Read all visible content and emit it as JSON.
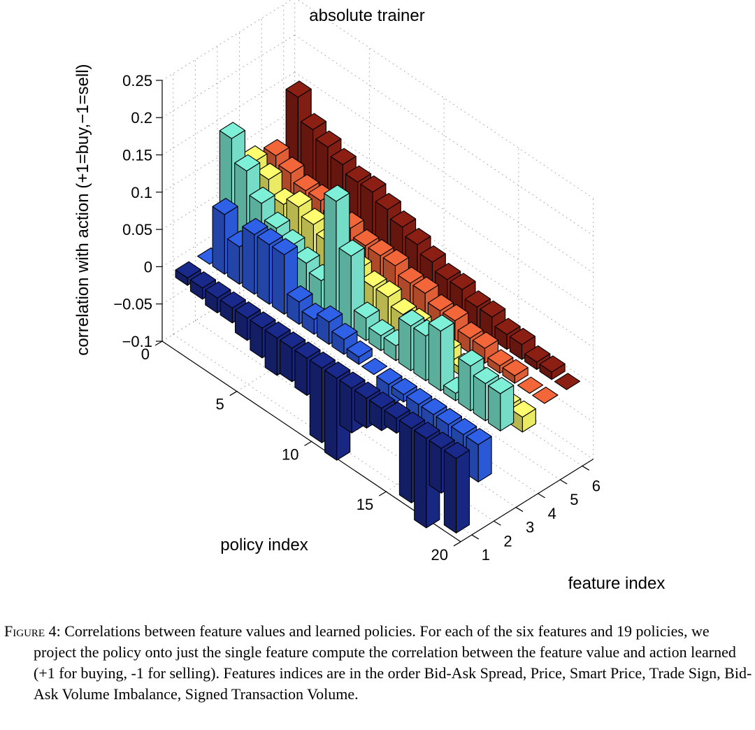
{
  "chart_data": {
    "type": "bar3d",
    "title": "absolute trainer",
    "zlabel": "correlation with action (+1=buy,−1=sell)",
    "xlabel": "policy index",
    "ylabel": "feature index",
    "zlim": [
      -0.1,
      0.25
    ],
    "z_ticks": [
      "0.25",
      "0.2",
      "0.15",
      "0.1",
      "0.05",
      "0",
      "−0.05",
      "−0.1"
    ],
    "x_ticks": [
      "0",
      "5",
      "10",
      "15",
      "20"
    ],
    "y_ticks": [
      "1",
      "2",
      "3",
      "4",
      "5",
      "6"
    ],
    "grid": true,
    "colormap": "jet",
    "features": [
      1,
      2,
      3,
      4,
      5,
      6
    ],
    "policies": [
      1,
      2,
      3,
      4,
      5,
      6,
      7,
      8,
      9,
      10,
      11,
      12,
      13,
      14,
      15,
      16,
      17,
      18,
      19
    ],
    "series": [
      {
        "feature": 1,
        "color": "#1a2a8c",
        "values": [
          -0.01,
          -0.015,
          -0.02,
          -0.02,
          -0.03,
          -0.04,
          -0.05,
          -0.045,
          -0.05,
          -0.1,
          -0.11,
          -0.06,
          -0.04,
          -0.03,
          -0.02,
          -0.1,
          -0.12,
          -0.06,
          -0.1
        ]
      },
      {
        "feature": 2,
        "color": "#2f60e8",
        "values": [
          0.0,
          0.08,
          0.05,
          0.08,
          0.08,
          0.08,
          0.03,
          0.02,
          0.03,
          0.02,
          0.01,
          0.0,
          -0.03,
          -0.01,
          -0.03,
          -0.02,
          -0.06,
          -0.05,
          -0.05
        ]
      },
      {
        "feature": 3,
        "color": "#7ff0d8",
        "values": [
          0.15,
          0.12,
          0.09,
          0.07,
          0.06,
          0.05,
          0.04,
          0.16,
          0.1,
          0.03,
          0.02,
          0.02,
          0.06,
          0.06,
          0.08,
          0.01,
          0.06,
          0.05,
          0.05
        ]
      },
      {
        "feature": 4,
        "color": "#fffe6e",
        "values": [
          0.1,
          0.09,
          0.07,
          0.08,
          0.07,
          0.06,
          0.05,
          0.05,
          0.04,
          0.04,
          0.03,
          0.03,
          0.02,
          0.02,
          0.01,
          0.01,
          0.0,
          -0.01,
          -0.02
        ]
      },
      {
        "feature": 5,
        "color": "#f2663a",
        "values": [
          0.09,
          0.08,
          0.07,
          0.07,
          0.06,
          0.06,
          0.05,
          0.05,
          0.05,
          0.04,
          0.04,
          0.03,
          0.03,
          0.02,
          0.02,
          0.01,
          0.01,
          0.0,
          0.0
        ]
      },
      {
        "feature": 6,
        "color": "#8c1f14",
        "values": [
          0.15,
          0.12,
          0.11,
          0.1,
          0.09,
          0.09,
          0.08,
          0.07,
          0.06,
          0.05,
          0.04,
          0.04,
          0.03,
          0.03,
          0.02,
          0.02,
          0.01,
          0.01,
          0.0
        ]
      }
    ]
  },
  "caption": {
    "label": "Figure 4:",
    "text": "Correlations between feature values and learned policies. For each of the six features and 19 policies, we project the policy onto just the single feature compute the correlation between the feature value and action learned (+1 for buying, -1 for selling). Features indices are in the order Bid-Ask Spread, Price, Smart Price, Trade Sign, Bid-Ask Volume Imbalance, Signed Transaction Volume."
  }
}
